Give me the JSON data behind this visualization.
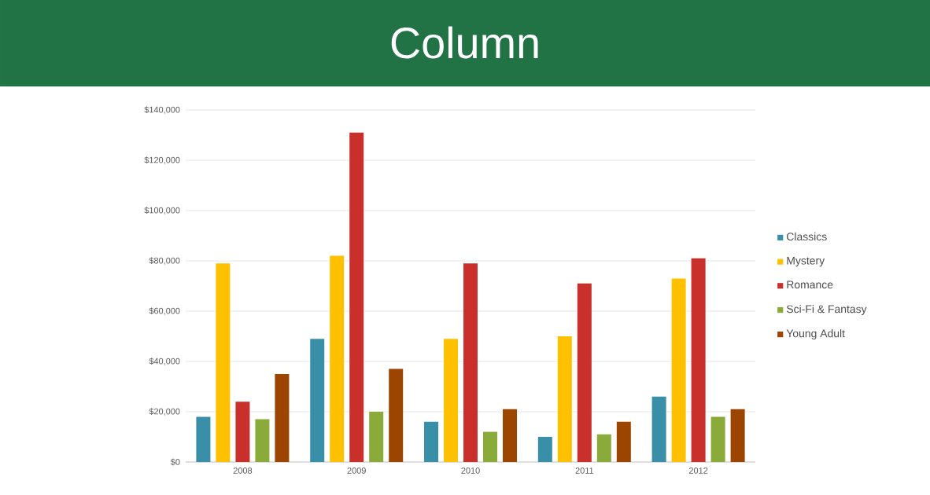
{
  "chart_data": {
    "type": "bar",
    "title": "Column",
    "categories": [
      "2008",
      "2009",
      "2010",
      "2011",
      "2012"
    ],
    "series": [
      {
        "name": "Classics",
        "color": "#3a8fa8",
        "values": [
          18000,
          49000,
          16000,
          10000,
          26000
        ]
      },
      {
        "name": "Mystery",
        "color": "#ffc000",
        "values": [
          79000,
          82000,
          49000,
          50000,
          73000
        ]
      },
      {
        "name": "Romance",
        "color": "#c9302c",
        "values": [
          24000,
          131000,
          79000,
          71000,
          81000
        ]
      },
      {
        "name": "Sci-Fi & Fantasy",
        "color": "#8aaa3a",
        "values": [
          17000,
          20000,
          12000,
          11000,
          18000
        ]
      },
      {
        "name": "Young Adult",
        "color": "#9c4500",
        "values": [
          35000,
          37000,
          21000,
          16000,
          21000
        ]
      }
    ],
    "ylim": [
      0,
      140000
    ],
    "yticks": [
      {
        "value": 0,
        "label": "$0"
      },
      {
        "value": 20000,
        "label": "$20,000"
      },
      {
        "value": 40000,
        "label": "$40,000"
      },
      {
        "value": 60000,
        "label": "$60,000"
      },
      {
        "value": 80000,
        "label": "$80,000"
      },
      {
        "value": 100000,
        "label": "$100,000"
      },
      {
        "value": 120000,
        "label": "$120,000"
      },
      {
        "value": 140000,
        "label": "$140,000"
      }
    ],
    "grid": "y",
    "legend": "right"
  }
}
